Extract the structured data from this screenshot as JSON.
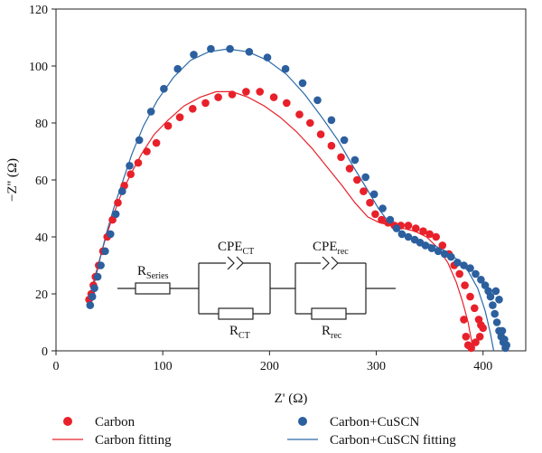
{
  "chart_data": {
    "type": "scatter",
    "xlabel": "Z' (Ω)",
    "ylabel": "−Z'' (Ω)",
    "xlim": [
      0,
      440
    ],
    "ylim": [
      0,
      120
    ],
    "xticks": [
      0,
      100,
      200,
      300,
      400
    ],
    "yticks": [
      0,
      20,
      40,
      60,
      80,
      100,
      120
    ],
    "grid": false,
    "legend_placement": "bottom",
    "series": [
      {
        "name": "Carbon",
        "kind": "points",
        "color": "#e8202a",
        "x": [
          31,
          33,
          35,
          37,
          40,
          44,
          48,
          53,
          58,
          64,
          70,
          77,
          85,
          94,
          105,
          116,
          128,
          140,
          152,
          165,
          178,
          191,
          204,
          216,
          228,
          238,
          248,
          258,
          267,
          275,
          282,
          288,
          294,
          299,
          305,
          311,
          317,
          323,
          330,
          337,
          344,
          350,
          356,
          362,
          368,
          373,
          378,
          383,
          388,
          392,
          396,
          398,
          400,
          397,
          393,
          389,
          386,
          384,
          382
        ],
        "y": [
          18,
          20,
          23,
          26,
          30,
          35,
          40,
          46,
          52,
          58,
          62,
          66,
          70,
          73,
          79,
          82,
          85,
          87,
          89,
          90,
          91,
          91,
          89,
          87,
          83,
          80,
          76,
          72,
          68,
          64,
          60,
          56,
          52,
          48,
          46,
          45,
          44,
          44,
          44,
          43,
          42,
          41,
          40,
          37,
          34,
          30,
          27,
          23,
          19,
          15,
          11,
          9,
          8,
          5,
          3,
          1,
          2,
          5,
          11
        ]
      },
      {
        "name": "Carbon+CuSCN",
        "kind": "points",
        "color": "#2c5f9e",
        "x": [
          32,
          34,
          36,
          39,
          42,
          46,
          51,
          56,
          62,
          69,
          78,
          89,
          101,
          114,
          129,
          145,
          163,
          181,
          198,
          215,
          231,
          245,
          258,
          270,
          280,
          290,
          298,
          306,
          313,
          319,
          324,
          330,
          336,
          341,
          346,
          352,
          358,
          364,
          370,
          376,
          382,
          388,
          393,
          398,
          402,
          405,
          407,
          409,
          411,
          413,
          415,
          417,
          419,
          421,
          422,
          420,
          418,
          415,
          412
        ],
        "y": [
          16,
          19,
          22,
          26,
          30,
          35,
          41,
          48,
          56,
          65,
          74,
          84,
          92,
          99,
          104,
          106,
          106,
          105,
          103,
          99,
          94,
          88,
          81,
          74,
          67,
          61,
          55,
          50,
          46,
          43,
          41,
          40,
          39,
          38,
          37,
          36,
          35,
          34,
          33,
          31,
          30,
          29,
          27,
          25,
          23,
          21,
          19,
          16,
          13,
          10,
          7,
          5,
          3,
          1,
          2,
          4,
          7,
          18,
          21
        ]
      },
      {
        "name": "Carbon fitting",
        "kind": "line",
        "color": "#e8202a",
        "x": [
          31,
          35,
          40,
          46,
          53,
          61,
          70,
          80,
          92,
          105,
          120,
          135,
          150,
          165,
          180,
          195,
          210,
          225,
          240,
          255,
          268,
          280,
          292,
          303,
          314,
          325,
          336,
          347,
          358,
          367,
          375,
          381,
          386,
          389,
          391
        ],
        "y": [
          18,
          24,
          31,
          39,
          47,
          55,
          62,
          69,
          76,
          81,
          86,
          89,
          91,
          91,
          89,
          86,
          82,
          77,
          71,
          64,
          58,
          52,
          47,
          45,
          44,
          43,
          42,
          40,
          36,
          31,
          24,
          17,
          10,
          4,
          0
        ]
      },
      {
        "name": "Carbon+CuSCN fitting",
        "kind": "line",
        "color": "#2a6aa8",
        "x": [
          32,
          36,
          41,
          47,
          54,
          62,
          71,
          82,
          95,
          110,
          126,
          143,
          161,
          180,
          198,
          216,
          233,
          249,
          264,
          278,
          291,
          302,
          312,
          322,
          332,
          343,
          354,
          365,
          376,
          386,
          395,
          402,
          407,
          410
        ],
        "y": [
          17,
          24,
          32,
          41,
          50,
          59,
          69,
          79,
          88,
          96,
          102,
          105,
          106,
          105,
          102,
          97,
          90,
          82,
          74,
          65,
          57,
          50,
          45,
          42,
          40,
          38,
          37,
          35,
          32,
          28,
          22,
          14,
          6,
          0
        ]
      }
    ]
  },
  "circuit": {
    "r_series_main": "R",
    "r_series_sub": "Series",
    "cpe_ct_main": "CPE",
    "cpe_ct_sub": "CT",
    "r_ct_main": "R",
    "r_ct_sub": "CT",
    "cpe_rec_main": "CPE",
    "cpe_rec_sub": "rec",
    "r_rec_main": "R",
    "r_rec_sub": "rec"
  }
}
